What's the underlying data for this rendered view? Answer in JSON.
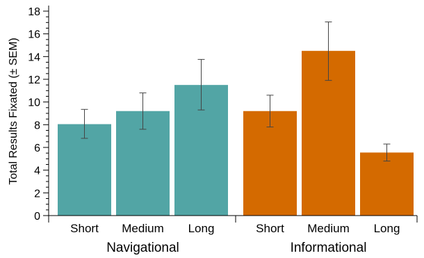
{
  "chart_data": {
    "type": "bar",
    "ylabel": "Total Results Fixated (± SEM)",
    "xlabel": "",
    "ylim": [
      0,
      18
    ],
    "yticks": [
      0,
      2,
      4,
      6,
      8,
      10,
      12,
      14,
      16,
      18
    ],
    "grid": false,
    "legend": "none",
    "groups": [
      {
        "name": "Navigational",
        "color": "#52a5a5",
        "bars": [
          {
            "category": "Short",
            "value": 8.05,
            "err_low": 6.8,
            "err_high": 9.35
          },
          {
            "category": "Medium",
            "value": 9.2,
            "err_low": 7.6,
            "err_high": 10.8
          },
          {
            "category": "Long",
            "value": 11.5,
            "err_low": 9.3,
            "err_high": 13.75
          }
        ]
      },
      {
        "name": "Informational",
        "color": "#d46a00",
        "bars": [
          {
            "category": "Short",
            "value": 9.2,
            "err_low": 7.8,
            "err_high": 10.6
          },
          {
            "category": "Medium",
            "value": 14.5,
            "err_low": 11.9,
            "err_high": 17.05
          },
          {
            "category": "Long",
            "value": 5.55,
            "err_low": 4.8,
            "err_high": 6.3
          }
        ]
      }
    ]
  }
}
